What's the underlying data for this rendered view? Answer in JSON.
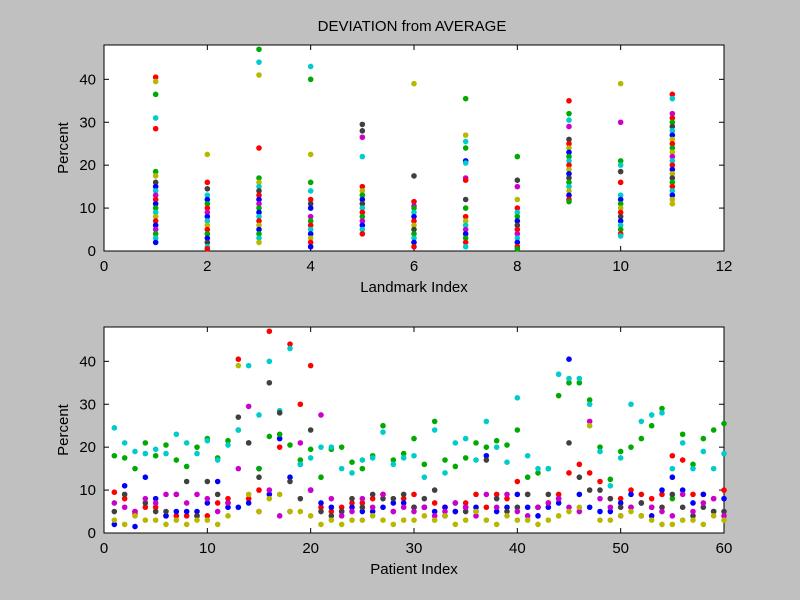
{
  "title": "DEVIATION  from  AVERAGE",
  "palette": [
    "#ff0000",
    "#0000ff",
    "#00aa00",
    "#00cccc",
    "#404040",
    "#cc00cc",
    "#b8b800"
  ],
  "chart_data": [
    {
      "type": "scatter",
      "xlabel": "Landmark Index",
      "ylabel": "Percent",
      "xlim": [
        0,
        12
      ],
      "ylim": [
        0,
        48
      ],
      "xticks": [
        0,
        2,
        4,
        6,
        8,
        10,
        12
      ],
      "yticks": [
        0,
        10,
        20,
        30,
        40
      ],
      "grid": false,
      "points": [
        [
          1,
          40.5,
          0
        ],
        [
          1,
          39.5,
          6
        ],
        [
          1,
          36.5,
          2
        ],
        [
          1,
          31,
          3
        ],
        [
          1,
          28.5,
          0
        ],
        [
          1,
          18.5,
          2
        ],
        [
          1,
          17.5,
          6
        ],
        [
          1,
          16,
          4
        ],
        [
          1,
          15,
          1
        ],
        [
          1,
          14,
          3
        ],
        [
          1,
          13,
          5
        ],
        [
          1,
          12,
          0
        ],
        [
          1,
          11,
          1
        ],
        [
          1,
          10,
          2
        ],
        [
          1,
          9,
          3
        ],
        [
          1,
          8,
          6
        ],
        [
          1,
          7,
          0
        ],
        [
          1,
          6,
          1
        ],
        [
          1,
          5,
          5
        ],
        [
          1,
          4,
          2
        ],
        [
          1,
          3,
          3
        ],
        [
          1,
          2,
          1
        ],
        [
          2,
          22.5,
          6
        ],
        [
          2,
          16,
          0
        ],
        [
          2,
          14.5,
          4
        ],
        [
          2,
          13,
          3
        ],
        [
          2,
          12,
          1
        ],
        [
          2,
          11,
          2
        ],
        [
          2,
          10,
          0
        ],
        [
          2,
          9,
          5
        ],
        [
          2,
          8,
          1
        ],
        [
          2,
          7,
          3
        ],
        [
          2,
          6,
          6
        ],
        [
          2,
          5,
          0
        ],
        [
          2,
          4,
          2
        ],
        [
          2,
          3,
          1
        ],
        [
          2,
          2,
          4
        ],
        [
          2,
          1,
          3
        ],
        [
          2,
          0.5,
          0
        ],
        [
          3,
          47,
          2
        ],
        [
          3,
          44,
          3
        ],
        [
          3,
          41,
          6
        ],
        [
          3,
          24,
          0
        ],
        [
          3,
          17,
          2
        ],
        [
          3,
          16,
          6
        ],
        [
          3,
          15,
          3
        ],
        [
          3,
          14,
          4
        ],
        [
          3,
          13,
          0
        ],
        [
          3,
          12,
          1
        ],
        [
          3,
          11,
          5
        ],
        [
          3,
          10,
          2
        ],
        [
          3,
          9,
          1
        ],
        [
          3,
          8,
          3
        ],
        [
          3,
          7,
          0
        ],
        [
          3,
          6,
          6
        ],
        [
          3,
          5,
          1
        ],
        [
          3,
          4,
          2
        ],
        [
          3,
          3,
          3
        ],
        [
          3,
          2,
          6
        ],
        [
          4,
          43,
          3
        ],
        [
          4,
          40,
          2
        ],
        [
          4,
          22.5,
          6
        ],
        [
          4,
          16,
          2
        ],
        [
          4,
          14,
          3
        ],
        [
          4,
          12,
          0
        ],
        [
          4,
          11,
          4
        ],
        [
          4,
          10,
          1
        ],
        [
          4,
          8,
          5
        ],
        [
          4,
          7,
          2
        ],
        [
          4,
          6,
          0
        ],
        [
          4,
          5,
          3
        ],
        [
          4,
          4,
          1
        ],
        [
          4,
          3,
          6
        ],
        [
          4,
          2,
          0
        ],
        [
          4,
          1,
          1
        ],
        [
          5,
          29.5,
          4
        ],
        [
          5,
          28,
          4
        ],
        [
          5,
          26.5,
          5
        ],
        [
          5,
          22,
          3
        ],
        [
          5,
          15,
          0
        ],
        [
          5,
          14,
          6
        ],
        [
          5,
          13,
          2
        ],
        [
          5,
          12,
          1
        ],
        [
          5,
          11,
          4
        ],
        [
          5,
          10,
          3
        ],
        [
          5,
          9,
          0
        ],
        [
          5,
          8,
          2
        ],
        [
          5,
          7,
          5
        ],
        [
          5,
          6,
          1
        ],
        [
          5,
          5,
          3
        ],
        [
          5,
          4,
          0
        ],
        [
          6,
          39,
          6
        ],
        [
          6,
          17.5,
          4
        ],
        [
          6,
          11.5,
          0
        ],
        [
          6,
          10.5,
          5
        ],
        [
          6,
          10,
          2
        ],
        [
          6,
          9,
          3
        ],
        [
          6,
          8,
          1
        ],
        [
          6,
          7,
          0
        ],
        [
          6,
          6,
          6
        ],
        [
          6,
          5,
          4
        ],
        [
          6,
          4,
          2
        ],
        [
          6,
          3,
          3
        ],
        [
          6,
          2,
          1
        ],
        [
          6,
          1,
          0
        ],
        [
          7,
          35.5,
          2
        ],
        [
          7,
          27,
          6
        ],
        [
          7,
          25.5,
          3
        ],
        [
          7,
          24,
          2
        ],
        [
          7,
          21,
          1
        ],
        [
          7,
          20.5,
          3
        ],
        [
          7,
          17,
          5
        ],
        [
          7,
          16.5,
          0
        ],
        [
          7,
          12,
          4
        ],
        [
          7,
          10,
          2
        ],
        [
          7,
          8,
          0
        ],
        [
          7,
          7,
          6
        ],
        [
          7,
          6,
          3
        ],
        [
          7,
          5,
          5
        ],
        [
          7,
          4,
          1
        ],
        [
          7,
          3,
          2
        ],
        [
          7,
          2,
          0
        ],
        [
          7,
          1,
          3
        ],
        [
          8,
          22,
          2
        ],
        [
          8,
          16.5,
          4
        ],
        [
          8,
          15,
          5
        ],
        [
          8,
          12,
          6
        ],
        [
          8,
          10,
          0
        ],
        [
          8,
          9,
          3
        ],
        [
          8,
          8,
          2
        ],
        [
          8,
          7,
          1
        ],
        [
          8,
          6,
          4
        ],
        [
          8,
          5,
          0
        ],
        [
          8,
          4,
          5
        ],
        [
          8,
          3,
          3
        ],
        [
          8,
          2,
          1
        ],
        [
          8,
          1,
          0
        ],
        [
          8,
          0.5,
          2
        ],
        [
          9,
          35,
          0
        ],
        [
          9,
          32,
          2
        ],
        [
          9,
          30.5,
          3
        ],
        [
          9,
          29,
          5
        ],
        [
          9,
          26,
          4
        ],
        [
          9,
          25,
          0
        ],
        [
          9,
          24,
          6
        ],
        [
          9,
          23,
          1
        ],
        [
          9,
          22,
          2
        ],
        [
          9,
          21,
          3
        ],
        [
          9,
          20,
          0
        ],
        [
          9,
          19,
          6
        ],
        [
          9,
          18,
          1
        ],
        [
          9,
          17,
          4
        ],
        [
          9,
          16,
          2
        ],
        [
          9,
          15,
          3
        ],
        [
          9,
          14,
          6
        ],
        [
          9,
          13,
          1
        ],
        [
          9,
          12,
          0
        ],
        [
          9,
          11.5,
          2
        ],
        [
          10,
          39,
          6
        ],
        [
          10,
          30,
          5
        ],
        [
          10,
          21,
          2
        ],
        [
          10,
          20,
          3
        ],
        [
          10,
          18.5,
          4
        ],
        [
          10,
          16,
          0
        ],
        [
          10,
          13,
          3
        ],
        [
          10,
          12,
          1
        ],
        [
          10,
          11,
          2
        ],
        [
          10,
          10,
          6
        ],
        [
          10,
          9,
          0
        ],
        [
          10,
          8,
          4
        ],
        [
          10,
          7,
          1
        ],
        [
          10,
          6,
          3
        ],
        [
          10,
          5,
          2
        ],
        [
          10,
          4,
          0
        ],
        [
          10,
          3.5,
          3
        ],
        [
          11,
          36.5,
          0
        ],
        [
          11,
          35.5,
          3
        ],
        [
          11,
          32,
          5
        ],
        [
          11,
          31,
          0
        ],
        [
          11,
          30,
          2
        ],
        [
          11,
          29,
          4
        ],
        [
          11,
          28,
          3
        ],
        [
          11,
          27,
          1
        ],
        [
          11,
          26,
          6
        ],
        [
          11,
          25,
          0
        ],
        [
          11,
          24,
          2
        ],
        [
          11,
          23,
          6
        ],
        [
          11,
          22,
          5
        ],
        [
          11,
          21,
          3
        ],
        [
          11,
          20,
          0
        ],
        [
          11,
          19,
          1
        ],
        [
          11,
          18,
          6
        ],
        [
          11,
          17,
          4
        ],
        [
          11,
          16,
          2
        ],
        [
          11,
          15,
          0
        ],
        [
          11,
          14,
          3
        ],
        [
          11,
          13,
          1
        ],
        [
          11,
          12,
          6
        ],
        [
          11,
          11,
          6
        ]
      ]
    },
    {
      "type": "scatter",
      "xlabel": "Patient Index",
      "ylabel": "Percent",
      "xlim": [
        0,
        60
      ],
      "ylim": [
        0,
        48
      ],
      "xticks": [
        0,
        10,
        20,
        30,
        40,
        50,
        60
      ],
      "yticks": [
        0,
        10,
        20,
        30,
        40
      ],
      "grid": false,
      "series": [
        {
          "values": [
            9.5,
            8,
            4.5,
            6,
            6,
            4,
            4,
            4,
            4,
            4,
            7,
            8,
            40.5,
            8,
            10,
            47,
            20,
            44,
            30,
            39,
            6,
            5,
            6,
            7,
            7,
            8,
            9,
            5,
            8,
            9,
            6,
            7,
            6,
            5,
            7,
            9,
            6,
            9,
            8,
            12,
            9,
            6,
            7,
            9,
            14,
            16,
            14,
            12,
            8,
            8,
            10,
            9,
            8,
            9,
            18,
            17,
            9,
            9,
            8,
            10
          ]
        },
        {
          "values": [
            2,
            11,
            1.5,
            13,
            8,
            4,
            5,
            5,
            5,
            7,
            12,
            6,
            6,
            7,
            15,
            9,
            22,
            13,
            16,
            10,
            7,
            6,
            5,
            6,
            5,
            5,
            6,
            7,
            7,
            6,
            6,
            5,
            6,
            5,
            6,
            6,
            18,
            5,
            6,
            9,
            6,
            4,
            6,
            7,
            40.5,
            9,
            6,
            5,
            5,
            7,
            9,
            7,
            4,
            10,
            13,
            10,
            7,
            9,
            5,
            8
          ]
        },
        {
          "values": [
            18,
            17.5,
            15,
            21,
            18,
            20.5,
            17,
            15.5,
            20,
            22,
            17.5,
            21.5,
            24,
            21,
            15,
            22.5,
            23,
            20.5,
            17,
            19.5,
            13,
            19.5,
            20,
            16.5,
            15,
            18,
            25,
            17,
            18.5,
            22,
            16,
            26,
            17,
            15.5,
            17.5,
            21,
            20,
            21.5,
            20.5,
            24,
            13,
            14,
            15,
            32,
            35,
            35,
            31,
            20,
            12.5,
            19,
            20,
            22,
            25,
            29,
            8,
            23,
            16,
            22,
            24,
            25.5
          ]
        },
        {
          "values": [
            24.5,
            21,
            19,
            18.5,
            19.5,
            18.5,
            23,
            21,
            18.5,
            21.5,
            17,
            20.5,
            24,
            39,
            27.5,
            40,
            28.5,
            43,
            16,
            17.5,
            20,
            20,
            15,
            14,
            17,
            17.5,
            23.5,
            16,
            17.5,
            18,
            13,
            24,
            14,
            21,
            22,
            17,
            26,
            20,
            16.5,
            31.5,
            18,
            15,
            15,
            37,
            36,
            36,
            30,
            19,
            11,
            17.5,
            30,
            26,
            27.5,
            28,
            15,
            21,
            15,
            19,
            15,
            18.5
          ]
        },
        {
          "values": [
            5,
            9,
            5,
            7,
            5,
            5,
            9,
            12,
            4,
            12,
            9,
            7,
            27,
            21,
            13,
            35,
            28,
            12,
            8,
            24,
            5,
            4,
            5,
            8,
            6,
            9,
            8,
            8,
            9,
            6,
            8,
            10,
            4,
            7,
            5,
            5,
            17,
            8,
            5,
            6,
            9,
            6,
            9,
            8,
            21,
            13,
            10,
            10,
            8,
            6,
            6,
            7,
            6,
            6,
            9,
            6,
            4,
            6,
            5,
            5
          ]
        },
        {
          "values": [
            7,
            6,
            5,
            8,
            7,
            9,
            9,
            7,
            9,
            8,
            5,
            7,
            15,
            29.5,
            5,
            10,
            4,
            5,
            21,
            10,
            27.5,
            8,
            4,
            5,
            8,
            6,
            9,
            5,
            6,
            5,
            6,
            4,
            5,
            7,
            6,
            4,
            9,
            6,
            9,
            5,
            4,
            6,
            7,
            8,
            6,
            5,
            26,
            8,
            6,
            4,
            6,
            4,
            6,
            5,
            4,
            9,
            5,
            7,
            8,
            4
          ]
        },
        {
          "values": [
            3,
            2,
            4,
            3,
            3,
            2,
            3,
            2,
            3,
            3,
            2,
            4,
            39,
            9,
            5,
            8,
            9,
            5,
            5,
            4,
            2,
            3,
            2,
            3,
            3,
            4,
            3,
            2,
            3,
            3,
            4,
            3,
            4,
            2,
            3,
            5,
            3,
            2,
            4,
            3,
            3,
            2,
            3,
            4,
            5,
            6,
            25,
            3,
            3,
            4,
            5,
            4,
            3,
            2,
            2,
            3,
            3,
            2,
            4,
            3
          ]
        }
      ]
    }
  ]
}
